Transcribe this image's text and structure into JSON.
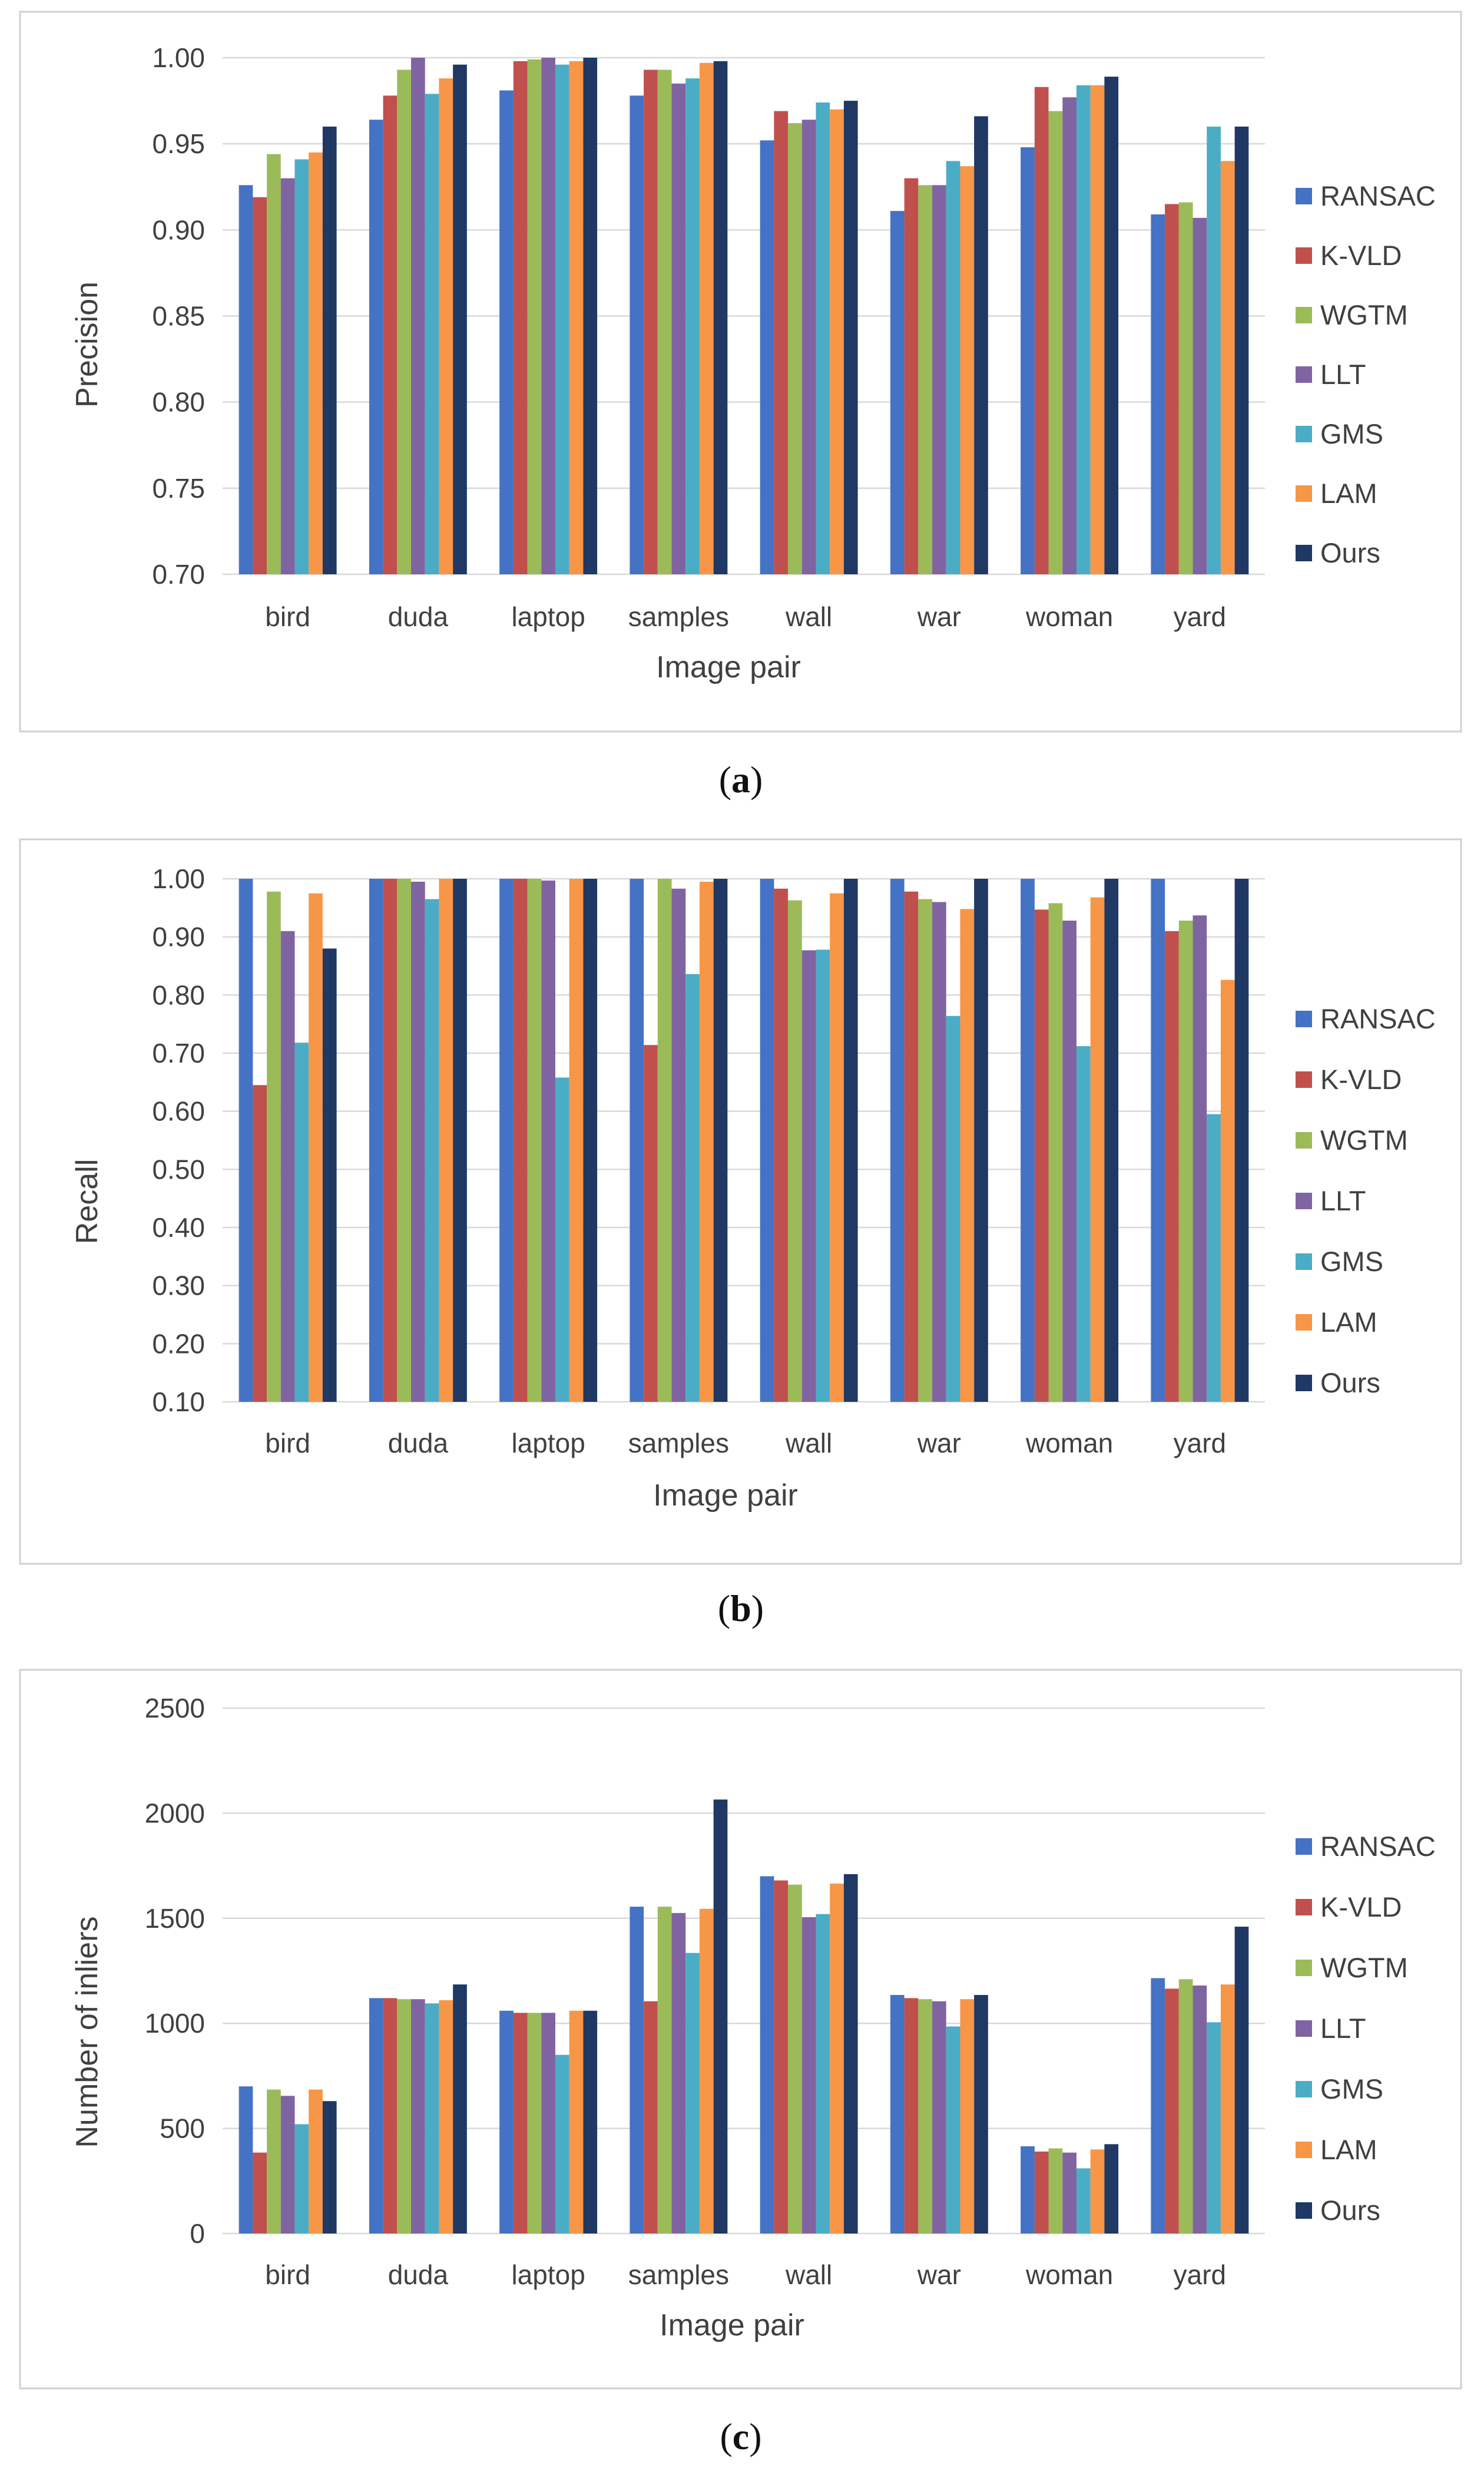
{
  "series_names": [
    "RANSAC",
    "K-VLD",
    "WGTM",
    "LLT",
    "GMS",
    "LAM",
    "Ours"
  ],
  "colors": {
    "RANSAC": "#4472c4",
    "K-VLD": "#c0504d",
    "WGTM": "#9bbb59",
    "LLT": "#8064a2",
    "GMS": "#4bacc6",
    "LAM": "#f79646",
    "Ours": "#1f3864"
  },
  "chart_data": [
    {
      "type": "bar",
      "caption_open": "(",
      "caption_letter": "a",
      "caption_close": ")",
      "xlabel": "Image pair",
      "ylabel": "Precision",
      "ylim": [
        0.7,
        1.0
      ],
      "yticks": [
        "0.70",
        "0.75",
        "0.80",
        "0.85",
        "0.90",
        "0.95",
        "1.00"
      ],
      "categories": [
        "bird",
        "duda",
        "laptop",
        "samples",
        "wall",
        "war",
        "woman",
        "yard"
      ],
      "legend_position": "right",
      "series": [
        {
          "name": "RANSAC",
          "values": [
            0.926,
            0.964,
            0.981,
            0.978,
            0.952,
            0.911,
            0.948,
            0.909
          ]
        },
        {
          "name": "K-VLD",
          "values": [
            0.919,
            0.978,
            0.998,
            0.993,
            0.969,
            0.93,
            0.983,
            0.915
          ]
        },
        {
          "name": "WGTM",
          "values": [
            0.944,
            0.993,
            0.999,
            0.993,
            0.962,
            0.926,
            0.969,
            0.916
          ]
        },
        {
          "name": "LLT",
          "values": [
            0.93,
            1.0,
            1.0,
            0.985,
            0.964,
            0.926,
            0.977,
            0.907
          ]
        },
        {
          "name": "GMS",
          "values": [
            0.941,
            0.979,
            0.996,
            0.988,
            0.974,
            0.94,
            0.984,
            0.96
          ]
        },
        {
          "name": "LAM",
          "values": [
            0.945,
            0.988,
            0.998,
            0.997,
            0.97,
            0.937,
            0.984,
            0.94
          ]
        },
        {
          "name": "Ours",
          "values": [
            0.96,
            0.996,
            1.0,
            0.998,
            0.975,
            0.966,
            0.989,
            0.96
          ]
        }
      ]
    },
    {
      "type": "bar",
      "caption_open": "(",
      "caption_letter": "b",
      "caption_close": ")",
      "xlabel": "Image pair",
      "ylabel": "Recall",
      "ylim": [
        0.1,
        1.0
      ],
      "yticks": [
        "0.10",
        "0.20",
        "0.30",
        "0.40",
        "0.50",
        "0.60",
        "0.70",
        "0.80",
        "0.90",
        "1.00"
      ],
      "categories": [
        "bird",
        "duda",
        "laptop",
        "samples",
        "wall",
        "war",
        "woman",
        "yard"
      ],
      "legend_position": "right",
      "series": [
        {
          "name": "RANSAC",
          "values": [
            1.0,
            1.0,
            1.0,
            1.0,
            1.0,
            1.0,
            1.0,
            1.0
          ]
        },
        {
          "name": "K-VLD",
          "values": [
            0.645,
            1.0,
            1.0,
            0.714,
            0.983,
            0.978,
            0.947,
            0.91
          ]
        },
        {
          "name": "WGTM",
          "values": [
            0.978,
            1.0,
            1.0,
            1.0,
            0.963,
            0.965,
            0.958,
            0.928
          ]
        },
        {
          "name": "LLT",
          "values": [
            0.91,
            0.995,
            0.997,
            0.983,
            0.877,
            0.96,
            0.928,
            0.937
          ]
        },
        {
          "name": "GMS",
          "values": [
            0.718,
            0.965,
            0.658,
            0.836,
            0.878,
            0.764,
            0.712,
            0.595
          ]
        },
        {
          "name": "LAM",
          "values": [
            0.975,
            1.0,
            1.0,
            0.995,
            0.975,
            0.948,
            0.968,
            0.826
          ]
        },
        {
          "name": "Ours",
          "values": [
            0.88,
            1.0,
            1.0,
            1.0,
            1.0,
            1.0,
            1.0,
            1.0
          ]
        }
      ]
    },
    {
      "type": "bar",
      "caption_open": "(",
      "caption_letter": "c",
      "caption_close": ")",
      "xlabel": "Image pair",
      "ylabel": "Number of inliers",
      "ylim": [
        0,
        2500
      ],
      "yticks": [
        "0",
        "500",
        "1000",
        "1500",
        "2000",
        "2500"
      ],
      "categories": [
        "bird",
        "duda",
        "laptop",
        "samples",
        "wall",
        "war",
        "woman",
        "yard"
      ],
      "legend_position": "right",
      "series": [
        {
          "name": "RANSAC",
          "values": [
            700,
            1120,
            1060,
            1555,
            1700,
            1135,
            415,
            1215
          ]
        },
        {
          "name": "K-VLD",
          "values": [
            385,
            1120,
            1050,
            1105,
            1680,
            1120,
            390,
            1165
          ]
        },
        {
          "name": "WGTM",
          "values": [
            685,
            1115,
            1050,
            1555,
            1660,
            1115,
            405,
            1210
          ]
        },
        {
          "name": "LLT",
          "values": [
            655,
            1115,
            1050,
            1525,
            1505,
            1105,
            385,
            1180
          ]
        },
        {
          "name": "GMS",
          "values": [
            520,
            1095,
            850,
            1335,
            1520,
            985,
            310,
            1005
          ]
        },
        {
          "name": "LAM",
          "values": [
            685,
            1110,
            1060,
            1545,
            1665,
            1115,
            400,
            1185
          ]
        },
        {
          "name": "Ours",
          "values": [
            630,
            1185,
            1060,
            2065,
            1710,
            1135,
            425,
            1460
          ]
        }
      ]
    }
  ]
}
